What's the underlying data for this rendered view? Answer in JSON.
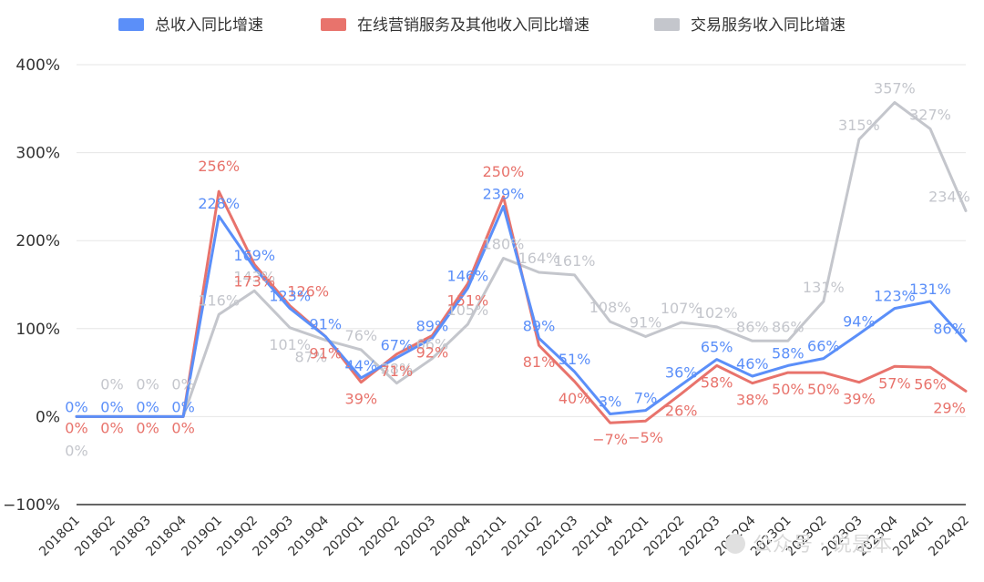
{
  "chart_data": {
    "type": "line",
    "title": "",
    "xlabel": "",
    "ylabel": "",
    "ylim": [
      -100,
      400
    ],
    "yticks": [
      -100,
      0,
      100,
      200,
      300,
      400
    ],
    "ytick_labels": [
      "−100%",
      "0%",
      "100%",
      "200%",
      "300%",
      "400%"
    ],
    "grid": true,
    "legend_position": "top",
    "categories": [
      "2018Q1",
      "2018Q2",
      "2018Q3",
      "2018Q4",
      "2019Q1",
      "2019Q2",
      "2019Q3",
      "2019Q4",
      "2020Q1",
      "2020Q2",
      "2020Q3",
      "2020Q4",
      "2021Q1",
      "2021Q2",
      "2021Q3",
      "2021Q4",
      "2022Q1",
      "2022Q2",
      "2022Q3",
      "2022Q4",
      "2023Q1",
      "2023Q2",
      "2023Q3",
      "2023Q4",
      "2024Q1",
      "2024Q2"
    ],
    "series": [
      {
        "name": "总收入同比增速",
        "color": "#5b8ff9",
        "values": [
          0,
          0,
          0,
          0,
          228,
          169,
          123,
          91,
          44,
          67,
          89,
          146,
          239,
          89,
          51,
          3,
          7,
          36,
          65,
          46,
          58,
          66,
          94,
          123,
          131,
          86
        ],
        "labels": [
          "0%",
          "0%",
          "0%",
          "0%",
          "228%",
          "169%",
          "123%",
          "91%",
          "44%",
          "67%",
          "89%",
          "146%",
          "239%",
          "89%",
          "51%",
          "3%",
          "7%",
          "36%",
          "65%",
          "46%",
          "58%",
          "66%",
          "94%",
          "123%",
          "131%",
          "86%"
        ]
      },
      {
        "name": "在线营销服务及其他收入同比增速",
        "color": "#e8736c",
        "values": [
          0,
          0,
          0,
          0,
          256,
          173,
          126,
          91,
          39,
          71,
          92,
          151,
          250,
          81,
          40,
          -7,
          -5,
          26,
          58,
          38,
          50,
          50,
          39,
          57,
          56,
          29
        ],
        "labels": [
          "0%",
          "0%",
          "0%",
          "0%",
          "256%",
          "173%",
          "126%",
          "91%",
          "39%",
          "71%",
          "92%",
          "151%",
          "250%",
          "81%",
          "40%",
          "−7%",
          "−5%",
          "26%",
          "58%",
          "38%",
          "50%",
          "50%",
          "39%",
          "57%",
          "56%",
          "29%"
        ]
      },
      {
        "name": "交易服务收入同比增速",
        "color": "#c4c6cc",
        "values": [
          0,
          0,
          0,
          0,
          116,
          143,
          101,
          87,
          76,
          38,
          66,
          105,
          180,
          164,
          161,
          108,
          91,
          107,
          102,
          86,
          86,
          131,
          315,
          357,
          327,
          234
        ],
        "labels": [
          "0%",
          "0%",
          "0%",
          "0%",
          "116%",
          "143%",
          "101%",
          "87%",
          "76%",
          "38%",
          "66%",
          "105%",
          "180%",
          "164%",
          "161%",
          "108%",
          "91%",
          "107%",
          "102%",
          "86%",
          "86%",
          "131%",
          "315%",
          "357%",
          "327%",
          "234%"
        ]
      }
    ]
  },
  "watermark": {
    "text": "公众号 · 说是本"
  }
}
